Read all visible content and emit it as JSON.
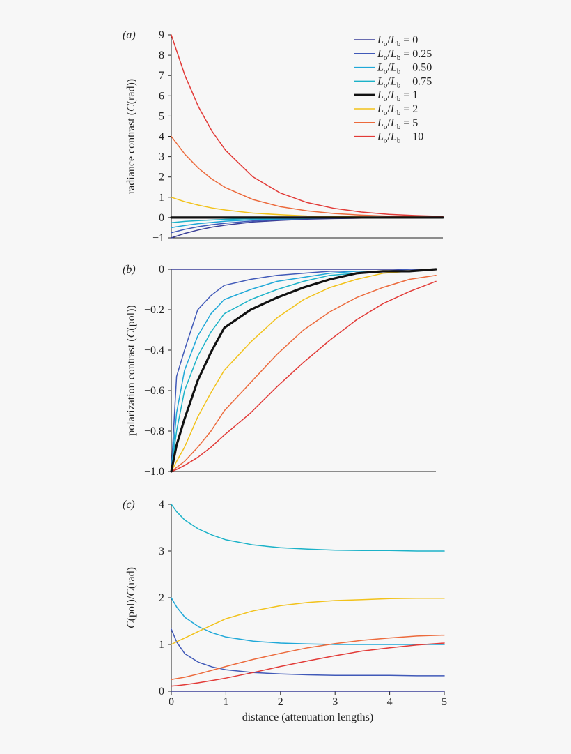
{
  "figure": {
    "xlabel": "distance (attenuation lengths)",
    "legend_placement": "top-right of panel (a)",
    "legend": [
      {
        "num": "L",
        "num_sub": "o",
        "den": "L",
        "den_sub": "b",
        "value": "0",
        "color": "#3a3f98",
        "bold": false
      },
      {
        "num": "L",
        "num_sub": "o",
        "den": "L",
        "den_sub": "b",
        "value": "0.25",
        "color": "#4059b8",
        "bold": false
      },
      {
        "num": "L",
        "num_sub": "o",
        "den": "L",
        "den_sub": "b",
        "value": "0.50",
        "color": "#1fa8d8",
        "bold": false
      },
      {
        "num": "L",
        "num_sub": "o",
        "den": "L",
        "den_sub": "b",
        "value": "0.75",
        "color": "#1bb2c8",
        "bold": false
      },
      {
        "num": "L",
        "num_sub": "o",
        "den": "L",
        "den_sub": "b",
        "value": "1",
        "color": "#111111",
        "bold": true
      },
      {
        "num": "L",
        "num_sub": "o",
        "den": "L",
        "den_sub": "b",
        "value": "2",
        "color": "#f2c21a",
        "bold": false
      },
      {
        "num": "L",
        "num_sub": "o",
        "den": "L",
        "den_sub": "b",
        "value": "5",
        "color": "#ec6a3c",
        "bold": false
      },
      {
        "num": "L",
        "num_sub": "o",
        "den": "L",
        "den_sub": "b",
        "value": "10",
        "color": "#e23a37",
        "bold": false
      }
    ]
  },
  "chart_data": [
    {
      "panel_label": "(a)",
      "type": "line",
      "ylabel_parts": [
        "radiance contrast (",
        "C",
        "(rad))"
      ],
      "xlim": [
        0,
        5
      ],
      "ylim": [
        -1,
        9
      ],
      "yticks": [
        "9",
        "8",
        "7",
        "6",
        "5",
        "4",
        "3",
        "2",
        "1",
        "0",
        "−1"
      ],
      "ytick_values": [
        9,
        8,
        7,
        6,
        5,
        4,
        3,
        2,
        1,
        0,
        -1
      ],
      "xticks": [],
      "x": [
        0,
        0.25,
        0.5,
        0.75,
        1,
        1.5,
        2,
        2.5,
        3,
        3.5,
        4,
        4.5,
        5
      ],
      "series": [
        {
          "legend_index": 0,
          "values": [
            -1.0,
            -0.78,
            -0.61,
            -0.47,
            -0.37,
            -0.22,
            -0.14,
            -0.08,
            -0.05,
            -0.03,
            -0.02,
            -0.01,
            -0.01
          ]
        },
        {
          "legend_index": 1,
          "values": [
            -0.75,
            -0.58,
            -0.45,
            -0.35,
            -0.28,
            -0.17,
            -0.1,
            -0.06,
            -0.04,
            -0.02,
            -0.01,
            -0.01,
            0.0
          ]
        },
        {
          "legend_index": 2,
          "values": [
            -0.5,
            -0.39,
            -0.3,
            -0.24,
            -0.18,
            -0.11,
            -0.07,
            -0.04,
            -0.02,
            -0.02,
            -0.01,
            0.0,
            0.0
          ]
        },
        {
          "legend_index": 3,
          "values": [
            -0.25,
            -0.19,
            -0.15,
            -0.12,
            -0.09,
            -0.06,
            -0.03,
            -0.02,
            -0.01,
            -0.01,
            0.0,
            0.0,
            0.0
          ]
        },
        {
          "legend_index": 4,
          "values": [
            0,
            0,
            0,
            0,
            0,
            0,
            0,
            0,
            0,
            0,
            0,
            0,
            0
          ]
        },
        {
          "legend_index": 5,
          "values": [
            1.0,
            0.78,
            0.61,
            0.47,
            0.37,
            0.22,
            0.14,
            0.08,
            0.05,
            0.03,
            0.02,
            0.01,
            0.01
          ]
        },
        {
          "legend_index": 6,
          "values": [
            4.0,
            3.12,
            2.43,
            1.89,
            1.47,
            0.89,
            0.54,
            0.33,
            0.2,
            0.12,
            0.07,
            0.04,
            0.03
          ]
        },
        {
          "legend_index": 7,
          "values": [
            9.0,
            7.01,
            5.46,
            4.25,
            3.31,
            2.01,
            1.22,
            0.74,
            0.45,
            0.27,
            0.16,
            0.1,
            0.06
          ]
        }
      ]
    },
    {
      "panel_label": "(b)",
      "type": "line",
      "ylabel_parts": [
        "polarization contrast (",
        "C",
        "(pol))"
      ],
      "xlim": [
        0,
        5
      ],
      "ylim": [
        -1.0,
        0
      ],
      "yticks": [
        "0",
        "−0.2",
        "−0.4",
        "−0.6",
        "−0.8",
        "−1.0"
      ],
      "ytick_values": [
        0,
        -0.2,
        -0.4,
        -0.6,
        -0.8,
        -1.0
      ],
      "xticks": [],
      "x": [
        0,
        0.1,
        0.25,
        0.5,
        0.75,
        1,
        1.5,
        2,
        2.5,
        3,
        3.5,
        4,
        4.5,
        5
      ],
      "series": [
        {
          "legend_index": 0,
          "values": [
            0,
            0,
            0,
            0,
            0,
            0,
            0,
            0,
            0,
            0,
            0,
            0,
            0,
            0
          ]
        },
        {
          "legend_index": 1,
          "values": [
            -1.0,
            -0.53,
            -0.4,
            -0.2,
            -0.13,
            -0.08,
            -0.05,
            -0.03,
            -0.02,
            -0.01,
            -0.01,
            -0.01,
            -0.0,
            -0.0
          ]
        },
        {
          "legend_index": 2,
          "values": [
            -1.0,
            -0.71,
            -0.5,
            -0.33,
            -0.22,
            -0.15,
            -0.1,
            -0.06,
            -0.04,
            -0.02,
            -0.01,
            -0.01,
            -0.01,
            -0.0
          ]
        },
        {
          "legend_index": 3,
          "values": [
            -1.0,
            -0.8,
            -0.6,
            -0.43,
            -0.31,
            -0.22,
            -0.15,
            -0.1,
            -0.06,
            -0.03,
            -0.02,
            -0.01,
            -0.01,
            -0.0
          ]
        },
        {
          "legend_index": 4,
          "values": [
            -1.0,
            -0.87,
            -0.74,
            -0.55,
            -0.41,
            -0.29,
            -0.2,
            -0.14,
            -0.09,
            -0.05,
            -0.02,
            -0.01,
            -0.01,
            -0.0
          ]
        },
        {
          "legend_index": 5,
          "values": [
            -1.0,
            -0.95,
            -0.88,
            -0.73,
            -0.61,
            -0.5,
            -0.36,
            -0.24,
            -0.15,
            -0.09,
            -0.05,
            -0.02,
            -0.01,
            -0.0
          ]
        },
        {
          "legend_index": 6,
          "values": [
            -1.0,
            -0.98,
            -0.95,
            -0.88,
            -0.8,
            -0.7,
            -0.56,
            -0.42,
            -0.3,
            -0.21,
            -0.14,
            -0.09,
            -0.05,
            -0.03
          ]
        },
        {
          "legend_index": 7,
          "values": [
            -1.0,
            -0.99,
            -0.97,
            -0.93,
            -0.88,
            -0.82,
            -0.71,
            -0.58,
            -0.46,
            -0.35,
            -0.25,
            -0.17,
            -0.11,
            -0.06
          ]
        }
      ]
    },
    {
      "panel_label": "(c)",
      "type": "line",
      "ylabel_parts": [
        "C",
        "(pol)/",
        "C",
        "(rad)"
      ],
      "xlim": [
        0,
        5
      ],
      "ylim": [
        0,
        4
      ],
      "yticks": [
        "4",
        "3",
        "2",
        "1",
        "0"
      ],
      "ytick_values": [
        4,
        3,
        2,
        1,
        0
      ],
      "xticks": [
        "0",
        "1",
        "2",
        "3",
        "4",
        "5"
      ],
      "xtick_values": [
        0,
        1,
        2,
        3,
        4,
        5
      ],
      "x": [
        0,
        0.1,
        0.25,
        0.5,
        0.75,
        1,
        1.5,
        2,
        2.5,
        3,
        3.5,
        4,
        4.5,
        5
      ],
      "series": [
        {
          "legend_index": 0,
          "values": [
            0,
            0,
            0,
            0,
            0,
            0,
            0,
            0,
            0,
            0,
            0,
            0,
            0,
            0
          ]
        },
        {
          "legend_index": 1,
          "values": [
            1.33,
            1.05,
            0.8,
            0.62,
            0.52,
            0.46,
            0.4,
            0.37,
            0.35,
            0.34,
            0.34,
            0.34,
            0.33,
            0.33
          ]
        },
        {
          "legend_index": 2,
          "values": [
            2.0,
            1.8,
            1.58,
            1.38,
            1.25,
            1.16,
            1.07,
            1.03,
            1.01,
            1.0,
            1.0,
            1.0,
            1.0,
            1.0
          ]
        },
        {
          "legend_index": 3,
          "values": [
            4.0,
            3.84,
            3.66,
            3.47,
            3.34,
            3.24,
            3.13,
            3.07,
            3.04,
            3.02,
            3.01,
            3.01,
            3.0,
            3.0
          ]
        },
        {
          "legend_index": 5,
          "values": [
            1.0,
            1.06,
            1.14,
            1.28,
            1.42,
            1.55,
            1.72,
            1.83,
            1.9,
            1.94,
            1.96,
            1.98,
            1.99,
            1.99
          ]
        },
        {
          "legend_index": 6,
          "values": [
            0.25,
            0.27,
            0.3,
            0.37,
            0.45,
            0.53,
            0.68,
            0.81,
            0.93,
            1.02,
            1.09,
            1.14,
            1.18,
            1.2
          ]
        },
        {
          "legend_index": 7,
          "values": [
            0.11,
            0.12,
            0.14,
            0.18,
            0.23,
            0.28,
            0.4,
            0.53,
            0.65,
            0.76,
            0.86,
            0.93,
            0.99,
            1.03
          ]
        }
      ]
    }
  ]
}
